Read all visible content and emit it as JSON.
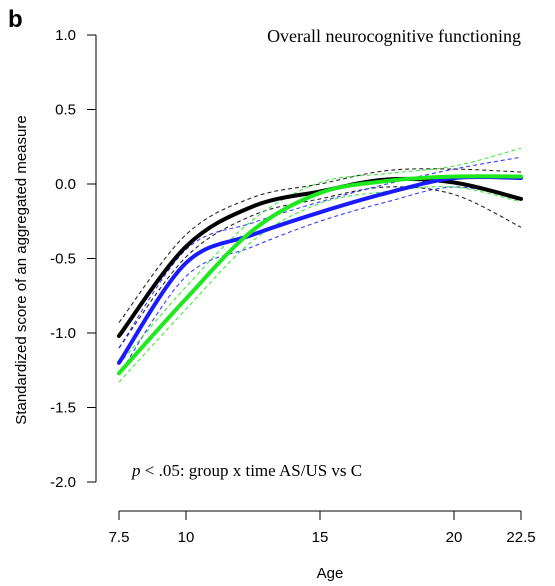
{
  "panel_label": "b",
  "annotation": {
    "p": "p",
    "rest": " < .05: group x time AS/US vs C"
  },
  "chart_data": {
    "type": "line",
    "title": "Overall neurocognitive functioning",
    "xlabel": "Age",
    "ylabel": "Standardized score of an aggregated measure",
    "xlim": [
      7.5,
      22.5
    ],
    "ylim": [
      -2.0,
      1.0
    ],
    "x_ticks": [
      7.5,
      10,
      15,
      20,
      22.5
    ],
    "x_tick_labels": [
      "7.5",
      "10",
      "15",
      "20",
      "22.5"
    ],
    "y_ticks": [
      1.0,
      0.5,
      0.0,
      -0.5,
      -1.0,
      -1.5,
      -2.0
    ],
    "y_tick_labels": [
      "1.0",
      "0.5",
      "0.0",
      "-0.5",
      "-1.0",
      "-1.5",
      "-2.0"
    ],
    "grid": false,
    "x": [
      7.5,
      10,
      12.5,
      15,
      17.5,
      20,
      22.5
    ],
    "series": [
      {
        "color": "#000000",
        "values": [
          -1.02,
          -0.42,
          -0.15,
          -0.05,
          0.03,
          0.01,
          -0.1
        ],
        "ci_lower": [
          -1.1,
          -0.49,
          -0.21,
          -0.1,
          -0.02,
          -0.07,
          -0.29
        ],
        "ci_upper": [
          -0.93,
          -0.34,
          -0.09,
          0.0,
          0.09,
          0.1,
          0.08
        ]
      },
      {
        "color": "#1a1aff",
        "values": [
          -1.2,
          -0.53,
          -0.34,
          -0.19,
          -0.06,
          0.04,
          0.04
        ],
        "ci_lower": [
          -1.28,
          -0.62,
          -0.42,
          -0.25,
          -0.12,
          -0.02,
          -0.1
        ],
        "ci_upper": [
          -1.1,
          -0.44,
          -0.26,
          -0.12,
          0.0,
          0.1,
          0.18
        ]
      },
      {
        "color": "#1ee81e",
        "values": [
          -1.27,
          -0.77,
          -0.31,
          -0.06,
          0.02,
          0.05,
          0.05
        ],
        "ci_lower": [
          -1.33,
          -0.84,
          -0.38,
          -0.13,
          -0.05,
          -0.02,
          -0.12
        ],
        "ci_upper": [
          -1.21,
          -0.69,
          -0.24,
          0.01,
          0.07,
          0.12,
          0.24
        ]
      }
    ]
  }
}
